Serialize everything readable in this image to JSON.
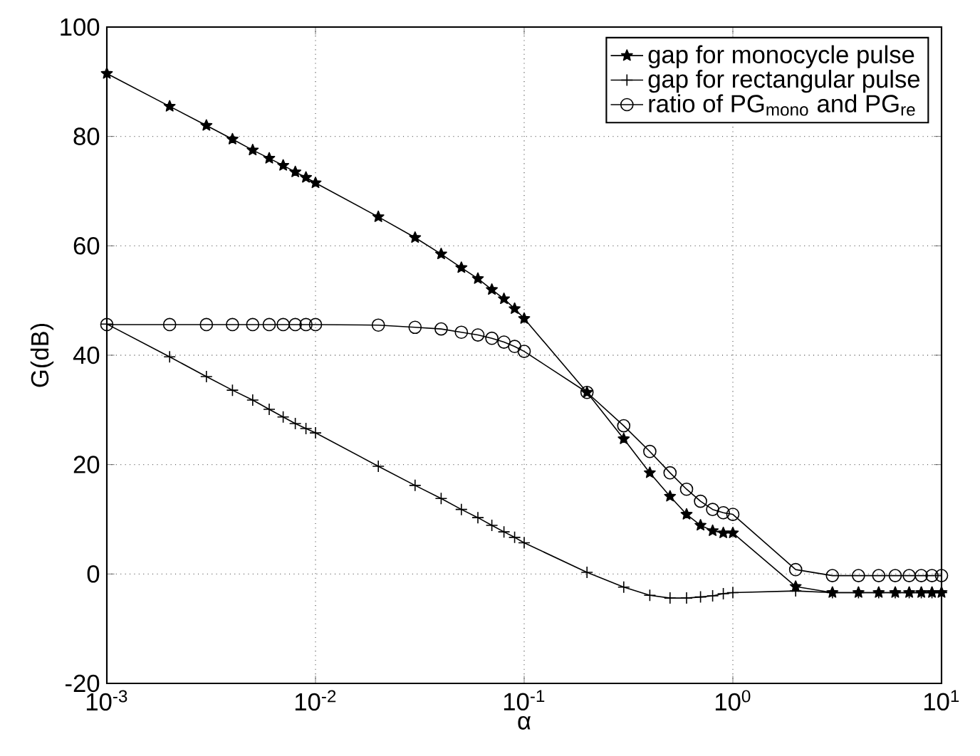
{
  "chart_data": {
    "type": "line",
    "xlabel": "α",
    "ylabel": "G(dB)",
    "log": "x",
    "x": [
      0.001,
      0.002,
      0.003,
      0.004,
      0.005,
      0.006,
      0.007,
      0.008,
      0.009,
      0.01,
      0.02,
      0.03,
      0.04,
      0.05,
      0.06,
      0.07,
      0.08,
      0.09,
      0.1,
      0.2,
      0.3,
      0.4,
      0.5,
      0.6,
      0.7,
      0.8,
      0.9,
      1,
      2,
      3,
      4,
      5,
      6,
      7,
      8,
      9,
      10
    ],
    "xlim": [
      0.001,
      10
    ],
    "xticks": [
      {
        "value": 0.001,
        "label": "10$^{-3}$"
      },
      {
        "value": 0.01,
        "label": "10$^{-2}$"
      },
      {
        "value": 0.1,
        "label": "10$^{-1}$"
      },
      {
        "value": 1,
        "label": "10$^{0}$"
      },
      {
        "value": 10,
        "label": "10$^{1}$"
      }
    ],
    "ylim": [
      -20,
      100
    ],
    "yticks": [
      -20,
      0,
      20,
      40,
      60,
      80,
      100
    ],
    "grid": true,
    "legend": "top right",
    "line_style": "solid",
    "series": [
      {
        "name": "gap for monocycle pulse",
        "color": "#000000",
        "marker": "star",
        "values": [
          91.5,
          85.5,
          82,
          79.5,
          77.5,
          76,
          74.7,
          73.5,
          72.5,
          71.5,
          65.3,
          61.5,
          58.5,
          56,
          54,
          52,
          50.3,
          48.5,
          46.7,
          33.2,
          24.7,
          18.5,
          14.2,
          10.9,
          8.9,
          7.9,
          7.5,
          7.5,
          -2.3,
          -3.4,
          -3.4,
          -3.4,
          -3.4,
          -3.4,
          -3.4,
          -3.4,
          -3.4
        ]
      },
      {
        "name": "gap for rectangular pulse",
        "color": "#000000",
        "marker": "cross",
        "values": [
          45.7,
          39.7,
          36.1,
          33.6,
          31.8,
          30.1,
          28.7,
          27.5,
          26.6,
          25.8,
          19.7,
          16.2,
          13.8,
          11.8,
          10.3,
          8.9,
          7.7,
          6.7,
          5.7,
          0.3,
          -2.4,
          -3.9,
          -4.4,
          -4.4,
          -4.2,
          -4.0,
          -3.6,
          -3.4,
          -3.1,
          -3.4,
          -3.4,
          -3.4,
          -3.4,
          -3.4,
          -3.4,
          -3.4,
          -3.4
        ]
      },
      {
        "name": "ratio of PG$_{mono}$ and PG$_{re}$",
        "color": "#000000",
        "marker": "circle",
        "values": [
          45.6,
          45.6,
          45.6,
          45.6,
          45.6,
          45.6,
          45.6,
          45.6,
          45.6,
          45.6,
          45.5,
          45.1,
          44.8,
          44.2,
          43.7,
          43.1,
          42.4,
          41.6,
          40.7,
          33.2,
          27.1,
          22.4,
          18.5,
          15.5,
          13.3,
          11.8,
          11.2,
          10.9,
          0.8,
          -0.3,
          -0.3,
          -0.3,
          -0.3,
          -0.3,
          -0.3,
          -0.3,
          -0.3
        ]
      }
    ]
  }
}
